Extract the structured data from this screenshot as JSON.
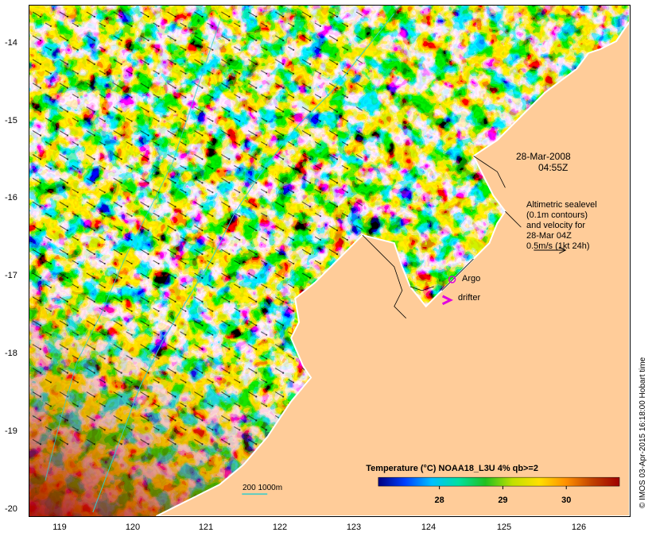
{
  "map": {
    "y_ticks": [
      "-14",
      "-15",
      "-16",
      "-17",
      "-18",
      "-19",
      "-20"
    ],
    "x_ticks": [
      "119",
      "120",
      "121",
      "122",
      "123",
      "124",
      "125",
      "126"
    ],
    "land_color": "#ffcc99",
    "coast_color": "#ffffff"
  },
  "overlay": {
    "date": "28-Mar-2008",
    "time": "04:55Z",
    "altimetry_lines": [
      "Altimetric sealevel",
      "(0.1m contours)",
      "and velocity for",
      "28-Mar 04Z",
      "0.5m/s (1kt 24h)"
    ],
    "argo_label": "Argo",
    "drifter_label": "drifter",
    "argo_color": "#e000e0",
    "drifter_color": "#e000e0",
    "depth_label": "200  1000m",
    "depth_color": "#33cccc"
  },
  "colorbar": {
    "title": "Temperature (°C) NOAA18_L3U 4% qb>=2",
    "ticks": [
      "28",
      "29",
      "30"
    ],
    "stops": [
      "#000080",
      "#0040ff",
      "#00c0ff",
      "#00e0a0",
      "#20c020",
      "#c0e000",
      "#ffe000",
      "#ff9000",
      "#c04000",
      "#a00000"
    ]
  },
  "credit": "© IMOS 03-Apr-2015 16:18:00 Hobart time"
}
